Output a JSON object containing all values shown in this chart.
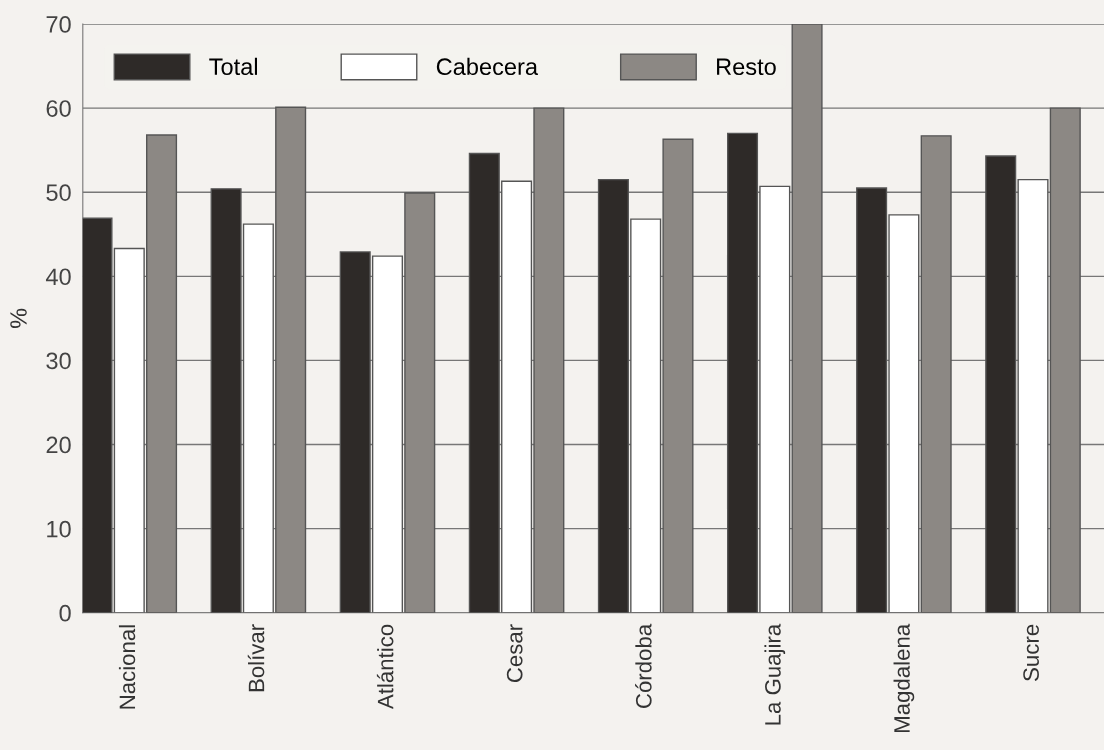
{
  "chart_data": {
    "type": "bar",
    "ylabel": "%",
    "categories": [
      "Nacional",
      "Bolívar",
      "Atlántico",
      "Cesar",
      "Córdoba",
      "La Guajira",
      "Magdalena",
      "Sucre"
    ],
    "series": [
      {
        "name": "Total",
        "color": "#2e2a28",
        "values": [
          46.9,
          50.4,
          42.9,
          54.6,
          51.5,
          57.0,
          50.5,
          54.3
        ]
      },
      {
        "name": "Cabecera",
        "color": "#ffffff",
        "values": [
          43.3,
          46.2,
          42.4,
          51.3,
          46.8,
          50.7,
          47.3,
          51.5
        ]
      },
      {
        "name": "Resto",
        "color": "#8c8884",
        "values": [
          56.8,
          60.1,
          49.9,
          60.0,
          56.3,
          70.0,
          56.7,
          60.0
        ]
      }
    ],
    "ylim": [
      0,
      70
    ],
    "yticks": [
      0,
      10,
      20,
      30,
      40,
      50,
      60,
      70
    ],
    "grid": "y",
    "legend": "top left"
  }
}
